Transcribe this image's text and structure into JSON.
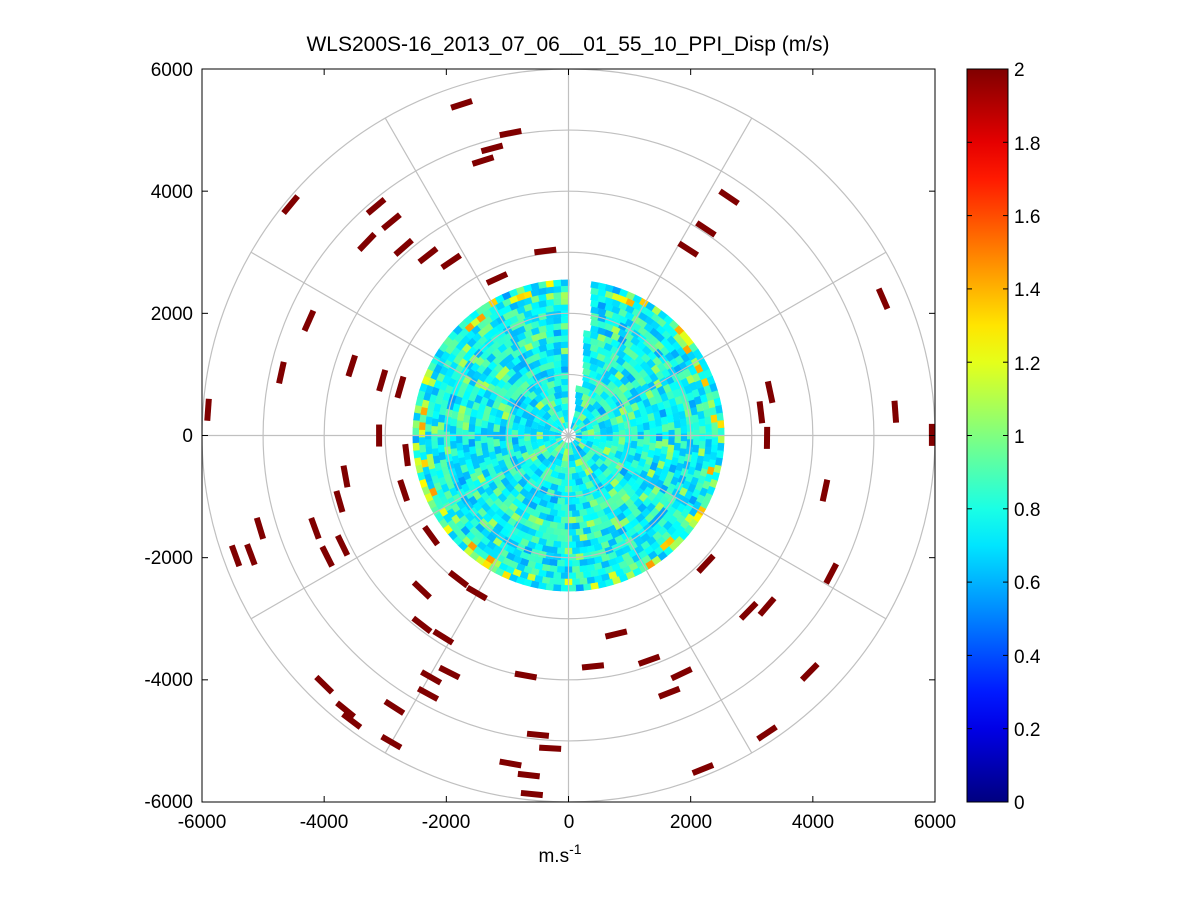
{
  "chart_data": {
    "type": "heatmap",
    "subtype": "polar-ppi",
    "title": "WLS200S-16_2013_07_06__01_55_10_PPI_Disp (m/s)",
    "xlabel": "m.s",
    "xlabel_superscript": "-1",
    "ylabel": "",
    "xlim": [
      -6000,
      6000
    ],
    "ylim": [
      -6000,
      6000
    ],
    "xticks": [
      -6000,
      -4000,
      -2000,
      0,
      2000,
      4000,
      6000
    ],
    "yticks": [
      6000,
      4000,
      2000,
      0,
      -2000,
      -4000,
      -6000
    ],
    "xtick_labels": [
      "-6000",
      "-4000",
      "-2000",
      "0",
      "2000",
      "4000",
      "6000"
    ],
    "ytick_labels": [
      "6000",
      "4000",
      "2000",
      "0",
      "-2000",
      "-4000",
      "-6000"
    ],
    "range_rings_m": [
      1000,
      2000,
      3000,
      4000,
      5000,
      6000
    ],
    "spoke_angles_deg": [
      0,
      30,
      60,
      90,
      120,
      150,
      180,
      210,
      240,
      270,
      300,
      330
    ],
    "dense_region_max_range_m": 2550,
    "scan_gap_azimuth_deg": [
      0,
      8
    ],
    "colorbar": {
      "colormap": "jet",
      "clim": [
        0,
        2
      ],
      "ticks": [
        0,
        0.2,
        0.4,
        0.6,
        0.8,
        1,
        1.2,
        1.4,
        1.6,
        1.8,
        2
      ],
      "tick_labels": [
        "0",
        "0.2",
        "0.4",
        "0.6",
        "0.8",
        "1",
        "1.2",
        "1.4",
        "1.6",
        "1.8",
        "2"
      ]
    },
    "outer_cells": [
      {
        "x": -1750,
        "y": 5420,
        "value": 2
      },
      {
        "x": -950,
        "y": 4950,
        "value": 2
      },
      {
        "x": -1400,
        "y": 4500,
        "value": 2
      },
      {
        "x": -1250,
        "y": 4700,
        "value": 2
      },
      {
        "x": -3150,
        "y": 3750,
        "value": 2
      },
      {
        "x": -4550,
        "y": 3780,
        "value": 2
      },
      {
        "x": -2900,
        "y": 3500,
        "value": 2
      },
      {
        "x": -3300,
        "y": 3170,
        "value": 2
      },
      {
        "x": -2700,
        "y": 3080,
        "value": 2
      },
      {
        "x": -2300,
        "y": 2950,
        "value": 2
      },
      {
        "x": -1920,
        "y": 2850,
        "value": 2
      },
      {
        "x": -1170,
        "y": 2570,
        "value": 2
      },
      {
        "x": -380,
        "y": 3020,
        "value": 2
      },
      {
        "x": -4250,
        "y": 1880,
        "value": 2
      },
      {
        "x": -3550,
        "y": 1140,
        "value": 2
      },
      {
        "x": -4700,
        "y": 1030,
        "value": 2
      },
      {
        "x": -5900,
        "y": 420,
        "value": 2
      },
      {
        "x": -3050,
        "y": 900,
        "value": 2
      },
      {
        "x": -2750,
        "y": 790,
        "value": 2
      },
      {
        "x": -3100,
        "y": 0,
        "value": 2
      },
      {
        "x": -2650,
        "y": -320,
        "value": 2
      },
      {
        "x": -3650,
        "y": -670,
        "value": 2
      },
      {
        "x": -2700,
        "y": -900,
        "value": 2
      },
      {
        "x": -3750,
        "y": -1080,
        "value": 2
      },
      {
        "x": -4150,
        "y": -1520,
        "value": 2
      },
      {
        "x": -5050,
        "y": -1520,
        "value": 2
      },
      {
        "x": -5450,
        "y": -1970,
        "value": 2
      },
      {
        "x": -5200,
        "y": -1950,
        "value": 2
      },
      {
        "x": -3700,
        "y": -1800,
        "value": 2
      },
      {
        "x": -3950,
        "y": -1980,
        "value": 2
      },
      {
        "x": -2250,
        "y": -1640,
        "value": 2
      },
      {
        "x": -1800,
        "y": -2350,
        "value": 2
      },
      {
        "x": -1500,
        "y": -2580,
        "value": 2
      },
      {
        "x": -2400,
        "y": -2530,
        "value": 2
      },
      {
        "x": -2400,
        "y": -3100,
        "value": 2
      },
      {
        "x": -2050,
        "y": -3300,
        "value": 2
      },
      {
        "x": -1950,
        "y": -3880,
        "value": 2
      },
      {
        "x": -2250,
        "y": -3960,
        "value": 2
      },
      {
        "x": -2300,
        "y": -4230,
        "value": 2
      },
      {
        "x": -4000,
        "y": -4080,
        "value": 2
      },
      {
        "x": -3650,
        "y": -4490,
        "value": 2
      },
      {
        "x": -3550,
        "y": -4670,
        "value": 2
      },
      {
        "x": -2850,
        "y": -4450,
        "value": 2
      },
      {
        "x": -2900,
        "y": -5020,
        "value": 2
      },
      {
        "x": -500,
        "y": -4900,
        "value": 2
      },
      {
        "x": -300,
        "y": -5120,
        "value": 2
      },
      {
        "x": -950,
        "y": -5370,
        "value": 2
      },
      {
        "x": -650,
        "y": -5560,
        "value": 2
      },
      {
        "x": -600,
        "y": -5870,
        "value": 2
      },
      {
        "x": -700,
        "y": -3930,
        "value": 2
      },
      {
        "x": 400,
        "y": -3780,
        "value": 2
      },
      {
        "x": 780,
        "y": -3250,
        "value": 2
      },
      {
        "x": 1320,
        "y": -3680,
        "value": 2
      },
      {
        "x": 1850,
        "y": -3900,
        "value": 2
      },
      {
        "x": 1650,
        "y": -4210,
        "value": 2
      },
      {
        "x": 2200,
        "y": -5460,
        "value": 2
      },
      {
        "x": 3250,
        "y": -4870,
        "value": 2
      },
      {
        "x": 3950,
        "y": -3870,
        "value": 2
      },
      {
        "x": 4300,
        "y": -2260,
        "value": 2
      },
      {
        "x": 3250,
        "y": -2800,
        "value": 2
      },
      {
        "x": 2950,
        "y": -2870,
        "value": 2
      },
      {
        "x": 4200,
        "y": -900,
        "value": 2
      },
      {
        "x": 3250,
        "y": -40,
        "value": 2
      },
      {
        "x": 3150,
        "y": 380,
        "value": 2
      },
      {
        "x": 3300,
        "y": 710,
        "value": 2
      },
      {
        "x": 5350,
        "y": 390,
        "value": 2
      },
      {
        "x": 5150,
        "y": 2240,
        "value": 2
      },
      {
        "x": 5950,
        "y": 10,
        "value": 2
      },
      {
        "x": 2630,
        "y": 3900,
        "value": 2
      },
      {
        "x": 2250,
        "y": 3380,
        "value": 2
      },
      {
        "x": 1960,
        "y": 3050,
        "value": 2
      },
      {
        "x": 2250,
        "y": -2100,
        "value": 2
      }
    ]
  }
}
